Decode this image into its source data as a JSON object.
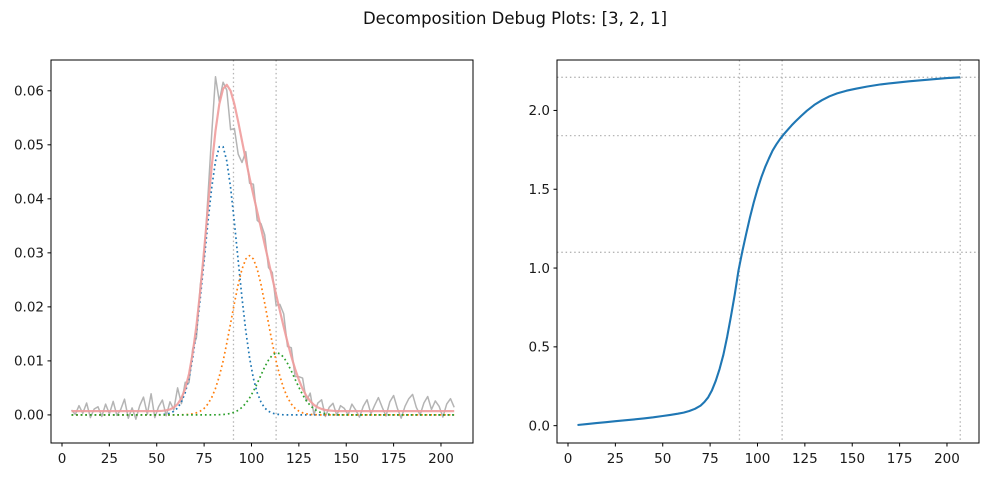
{
  "figure": {
    "title": "Decomposition Debug Plots: [3, 2, 1]",
    "background": "#ffffff"
  },
  "styles": {
    "frame_color": "#000000",
    "tick_label_color": "#1a1a1a",
    "guide_color": "#b5b5b5",
    "raw_color": "#b0b0b0",
    "fit_color": "#f09c9c",
    "cumulative_color": "#1f77b4"
  },
  "chart_data": [
    {
      "id": "decomposition-panel",
      "type": "line",
      "title": "",
      "xlabel": "",
      "ylabel": "",
      "xlim": [
        -5.8,
        216.9
      ],
      "ylim": [
        -0.0052,
        0.0657
      ],
      "xticks": [
        0,
        25,
        50,
        75,
        100,
        125,
        150,
        175,
        200
      ],
      "xtick_labels": [
        "0",
        "25",
        "50",
        "75",
        "100",
        "125",
        "150",
        "175",
        "200"
      ],
      "yticks": [
        0,
        0.01,
        0.02,
        0.03,
        0.04,
        0.05,
        0.06
      ],
      "ytick_labels": [
        "0.00",
        "0.01",
        "0.02",
        "0.03",
        "0.04",
        "0.05",
        "0.06"
      ],
      "grid": false,
      "legend": null,
      "x_start": 5,
      "x_step": 2,
      "baseline": 0.0007,
      "components": [
        {
          "name": "component-1",
          "amplitude": 0.05,
          "center": 84,
          "sigma": 8.5,
          "color": "#1f77b4",
          "style": "dotted"
        },
        {
          "name": "component-2",
          "amplitude": 0.0295,
          "center": 99,
          "sigma": 9.5,
          "color": "#ff7f0e",
          "style": "dotted"
        },
        {
          "name": "component-3",
          "amplitude": 0.0115,
          "center": 113.5,
          "sigma": 9,
          "color": "#2ca02c",
          "style": "dotted"
        }
      ],
      "raw_noise": [
        0.0002,
        -0.0006,
        0.001,
        -0.0004,
        0.0015,
        -0.0012,
        0.0004,
        0.0008,
        -0.001,
        0.0013,
        -0.0005,
        0.0018,
        -0.0008,
        0.0003,
        0.0022,
        -0.0013,
        0.0006,
        -0.0015,
        0.001,
        0.0026,
        -0.0006,
        0.0032,
        -0.0012,
        0.0008,
        0.002,
        -0.001,
        0.0014,
        -0.0004,
        0.003,
        -0.001,
        0.0012,
        -0.0016,
        0.0008,
        -0.0022,
        0.001,
        -0.0014,
        0.002,
        0.006,
        0.01,
        0.0005,
        0.0012,
        -0.001,
        -0.0072,
        -0.0045,
        -0.006,
        -0.004,
        0.0015,
        -0.001,
        0.002,
        -0.0016,
        0.0008,
        0.0018,
        -0.0012,
        0.001,
        -0.002,
        0.0012,
        0.0024,
        -0.0008,
        0.0016,
        -0.0014,
        0.0006,
        0.002,
        -0.001,
        0.0015,
        -0.0018,
        0.0008,
        0.0017,
        -0.0012,
        0.0006,
        0.0014,
        -0.0008,
        0.001,
        0.0005,
        -0.0007,
        0.0013,
        0.0002,
        -0.0011,
        0.0009,
        0.0021,
        -0.0005,
        0.0011,
        0.0025,
        0.0007,
        -0.0009,
        0.0017,
        0.0029,
        0.0005,
        -0.0013,
        0.0009,
        0.0023,
        0.0031,
        0.0007,
        -0.0007,
        0.0015,
        0.0027,
        0.0003,
        0.0019,
        0.0009,
        -0.0011,
        0.0013,
        0.0023,
        0.0007
      ],
      "vlines": [
        90.5,
        113
      ]
    },
    {
      "id": "cumulative-panel",
      "type": "line",
      "title": "",
      "xlabel": "",
      "ylabel": "",
      "xlim": [
        -5.8,
        216.9
      ],
      "ylim": [
        -0.11,
        2.32
      ],
      "xticks": [
        0,
        25,
        50,
        75,
        100,
        125,
        150,
        175,
        200
      ],
      "xtick_labels": [
        "0",
        "25",
        "50",
        "75",
        "100",
        "125",
        "150",
        "175",
        "200"
      ],
      "yticks": [
        0,
        0.5,
        1.0,
        1.5,
        2.0
      ],
      "ytick_labels": [
        "0.0",
        "0.5",
        "1.0",
        "1.5",
        "2.0"
      ],
      "grid": false,
      "legend": null,
      "x": [
        5,
        10,
        15,
        20,
        25,
        30,
        35,
        40,
        45,
        50,
        54,
        58,
        61,
        64,
        67,
        70,
        72,
        74,
        76,
        78,
        80,
        82,
        84,
        86,
        88,
        90,
        92,
        94,
        96,
        98,
        100,
        102,
        104,
        106,
        108,
        110,
        112,
        114,
        116,
        118,
        120,
        123,
        126,
        130,
        134,
        138,
        142,
        147,
        152,
        158,
        165,
        172,
        180,
        190,
        200,
        207
      ],
      "y": [
        0.004,
        0.01,
        0.016,
        0.022,
        0.028,
        0.034,
        0.04,
        0.046,
        0.053,
        0.061,
        0.068,
        0.076,
        0.083,
        0.093,
        0.107,
        0.127,
        0.15,
        0.18,
        0.225,
        0.285,
        0.36,
        0.45,
        0.565,
        0.695,
        0.83,
        0.985,
        1.105,
        1.215,
        1.32,
        1.415,
        1.5,
        1.575,
        1.64,
        1.695,
        1.745,
        1.785,
        1.82,
        1.85,
        1.878,
        1.905,
        1.93,
        1.965,
        1.998,
        2.035,
        2.065,
        2.09,
        2.108,
        2.125,
        2.138,
        2.152,
        2.165,
        2.175,
        2.185,
        2.195,
        2.205,
        2.21
      ],
      "hlines": [
        1.1,
        1.84,
        2.21
      ],
      "vlines": [
        90.5,
        113,
        207
      ]
    }
  ]
}
